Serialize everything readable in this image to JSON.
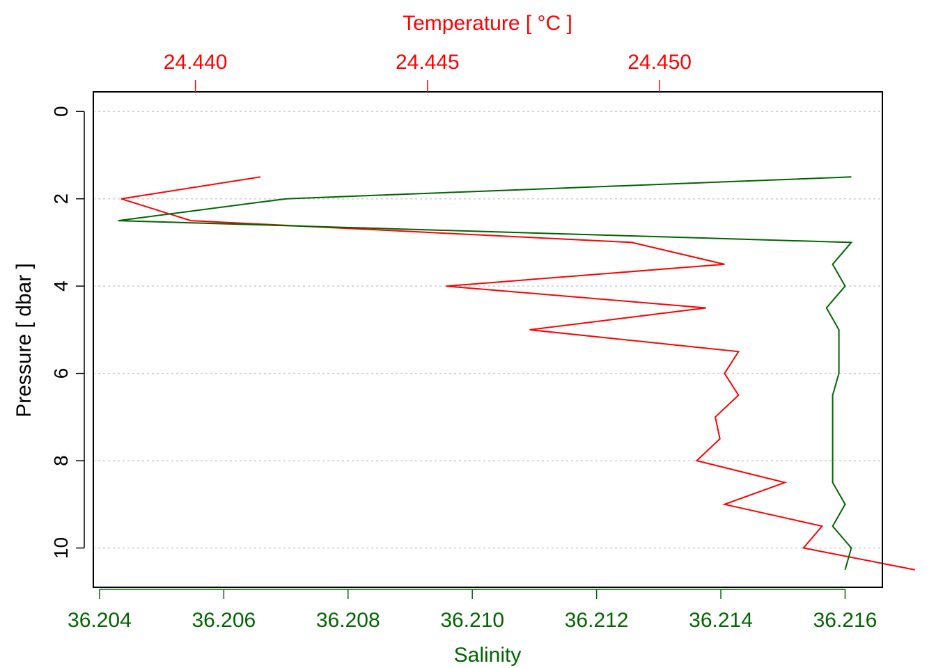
{
  "chart_data": {
    "type": "line",
    "title": "",
    "orientation": "vertical-profile",
    "top_axis": {
      "label": "Temperature [ °C ]",
      "range": [
        24.4378,
        24.4548
      ],
      "ticks": [
        24.44,
        24.445,
        24.45
      ],
      "tick_labels": [
        "24.440",
        "24.445",
        "24.450"
      ],
      "color": "#ff0000"
    },
    "bottom_axis": {
      "label": "Salinity",
      "range": [
        36.2039,
        36.2166
      ],
      "ticks": [
        36.204,
        36.206,
        36.208,
        36.21,
        36.212,
        36.214,
        36.216
      ],
      "tick_labels": [
        "36.204",
        "36.206",
        "36.208",
        "36.210",
        "36.212",
        "36.214",
        "36.216"
      ],
      "color": "#006400"
    },
    "y_axis": {
      "label": "Pressure [ dbar ]",
      "range": [
        10.9,
        -0.45
      ],
      "inverted": true,
      "ticks": [
        0,
        2,
        4,
        6,
        8,
        10
      ],
      "tick_labels": [
        "0",
        "2",
        "4",
        "6",
        "8",
        "10"
      ]
    },
    "grid": "horizontal dotted at y ticks",
    "series": [
      {
        "variable": "temperature",
        "axis": "top",
        "color": "#ff0000",
        "points": [
          [
            24.4414,
            1.5
          ],
          [
            24.4384,
            2.0
          ],
          [
            24.4399,
            2.5
          ],
          [
            24.4494,
            3.0
          ],
          [
            24.4514,
            3.5
          ],
          [
            24.4454,
            4.0
          ],
          [
            24.451,
            4.5
          ],
          [
            24.4472,
            5.0
          ],
          [
            24.4517,
            5.5
          ],
          [
            24.4514,
            6.0
          ],
          [
            24.4517,
            6.5
          ],
          [
            24.4512,
            7.0
          ],
          [
            24.4513,
            7.5
          ],
          [
            24.4508,
            8.0
          ],
          [
            24.4527,
            8.5
          ],
          [
            24.4514,
            9.0
          ],
          [
            24.4535,
            9.5
          ],
          [
            24.4531,
            10.0
          ],
          [
            24.4555,
            10.5
          ]
        ]
      },
      {
        "variable": "salinity",
        "axis": "bottom",
        "color": "#006400",
        "points": [
          [
            36.2161,
            1.5
          ],
          [
            36.207,
            2.0
          ],
          [
            36.2043,
            2.5
          ],
          [
            36.2161,
            3.0
          ],
          [
            36.2158,
            3.5
          ],
          [
            36.216,
            4.0
          ],
          [
            36.2157,
            4.5
          ],
          [
            36.2159,
            5.0
          ],
          [
            36.2159,
            5.5
          ],
          [
            36.2159,
            6.0
          ],
          [
            36.2158,
            6.5
          ],
          [
            36.2158,
            7.0
          ],
          [
            36.2158,
            7.5
          ],
          [
            36.2158,
            8.0
          ],
          [
            36.2158,
            8.5
          ],
          [
            36.216,
            9.0
          ],
          [
            36.2158,
            9.5
          ],
          [
            36.2161,
            10.0
          ],
          [
            36.216,
            10.5
          ]
        ]
      }
    ]
  }
}
